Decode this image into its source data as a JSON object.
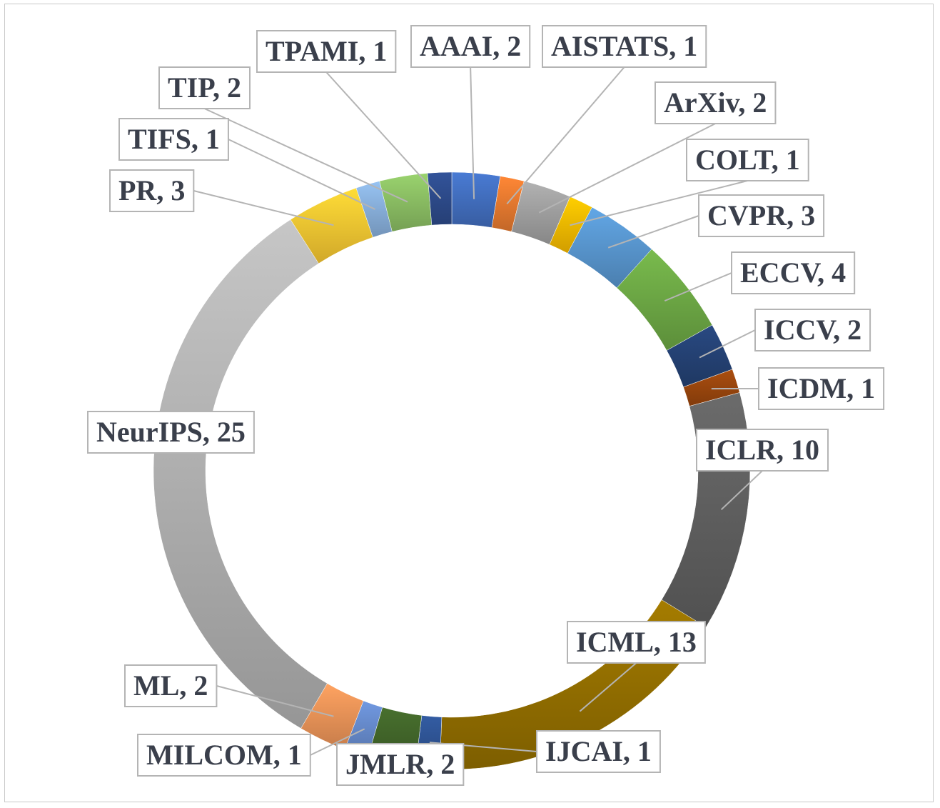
{
  "chart_data": {
    "type": "pie",
    "variant": "donut",
    "title": "",
    "slices": [
      {
        "name": "AAAI",
        "value": 2,
        "label": "AAAI, 2",
        "color": "#4472c4"
      },
      {
        "name": "AISTATS",
        "value": 1,
        "label": "AISTATS, 1",
        "color": "#ed7d31"
      },
      {
        "name": "ArXiv",
        "value": 2,
        "label": "ArXiv, 2",
        "color": "#a5a5a5"
      },
      {
        "name": "COLT",
        "value": 1,
        "label": "COLT, 1",
        "color": "#ffc000"
      },
      {
        "name": "CVPR",
        "value": 3,
        "label": "CVPR, 3",
        "color": "#5b9bd5"
      },
      {
        "name": "ECCV",
        "value": 4,
        "label": "ECCV, 4",
        "color": "#70ad47"
      },
      {
        "name": "ICCV",
        "value": 2,
        "label": "ICCV, 2",
        "color": "#264478"
      },
      {
        "name": "ICDM",
        "value": 1,
        "label": "ICDM, 1",
        "color": "#9e480e"
      },
      {
        "name": "ICLR",
        "value": 10,
        "label": "ICLR, 10",
        "color": "#636363"
      },
      {
        "name": "ICML",
        "value": 13,
        "label": "ICML, 13",
        "color": "#997300"
      },
      {
        "name": "IJCAI",
        "value": 1,
        "label": "IJCAI, 1",
        "color": "#2f5597"
      },
      {
        "name": "JMLR",
        "value": 2,
        "label": "JMLR, 2",
        "color": "#43682b"
      },
      {
        "name": "MILCOM",
        "value": 1,
        "label": "MILCOM, 1",
        "color": "#698ed0"
      },
      {
        "name": "ML",
        "value": 2,
        "label": "ML, 2",
        "color": "#f1975a"
      },
      {
        "name": "NeurIPS",
        "value": 25,
        "label": "NeurIPS, 25",
        "color": "#b7b7b7"
      },
      {
        "name": "PR",
        "value": 3,
        "label": "PR, 3",
        "color": "#ffcd33"
      },
      {
        "name": "TIFS",
        "value": 1,
        "label": "TIFS, 1",
        "color": "#8cb5e1"
      },
      {
        "name": "TIP",
        "value": 2,
        "label": "TIP, 2",
        "color": "#8fc366"
      },
      {
        "name": "TPAMI",
        "value": 1,
        "label": "TPAMI, 1",
        "color": "#2e4d8f"
      }
    ]
  }
}
